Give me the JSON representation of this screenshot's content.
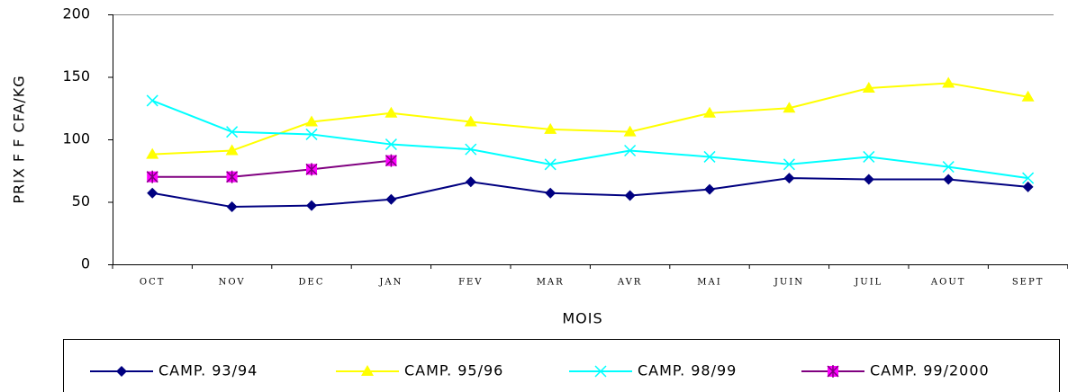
{
  "chart_data": {
    "type": "line",
    "y_label": "PRIX F F CFA/KG",
    "x_label": "MOIS",
    "categories": [
      "OCT",
      "NOV",
      "DEC",
      "JAN",
      "FEV",
      "MAR",
      "AVR",
      "MAI",
      "JUIN",
      "JUIL",
      "AOUT",
      "SEPT"
    ],
    "ylim": [
      0,
      200
    ],
    "yticks": [
      0,
      50,
      100,
      150,
      200
    ],
    "legend": "bottom",
    "series": [
      {
        "name": "CAMP. 93/94",
        "color": "#000080",
        "marker": "diamond",
        "values": [
          57,
          46,
          47,
          52,
          66,
          57,
          55,
          60,
          69,
          68,
          68,
          62
        ]
      },
      {
        "name": "CAMP. 95/96",
        "color": "#ffff00",
        "marker": "triangle",
        "values": [
          88,
          91,
          114,
          121,
          114,
          108,
          106,
          121,
          125,
          141,
          145,
          134
        ]
      },
      {
        "name": "CAMP. 98/99",
        "color": "#00ffff",
        "marker": "x",
        "values": [
          131,
          106,
          104,
          96,
          92,
          80,
          91,
          86,
          80,
          86,
          78,
          69
        ]
      },
      {
        "name": "CAMP. 99/2000",
        "color": "#800080",
        "marker": "asterisk",
        "values": [
          70,
          70,
          76,
          83,
          null,
          null,
          null,
          null,
          null,
          null,
          null,
          null
        ]
      }
    ]
  }
}
